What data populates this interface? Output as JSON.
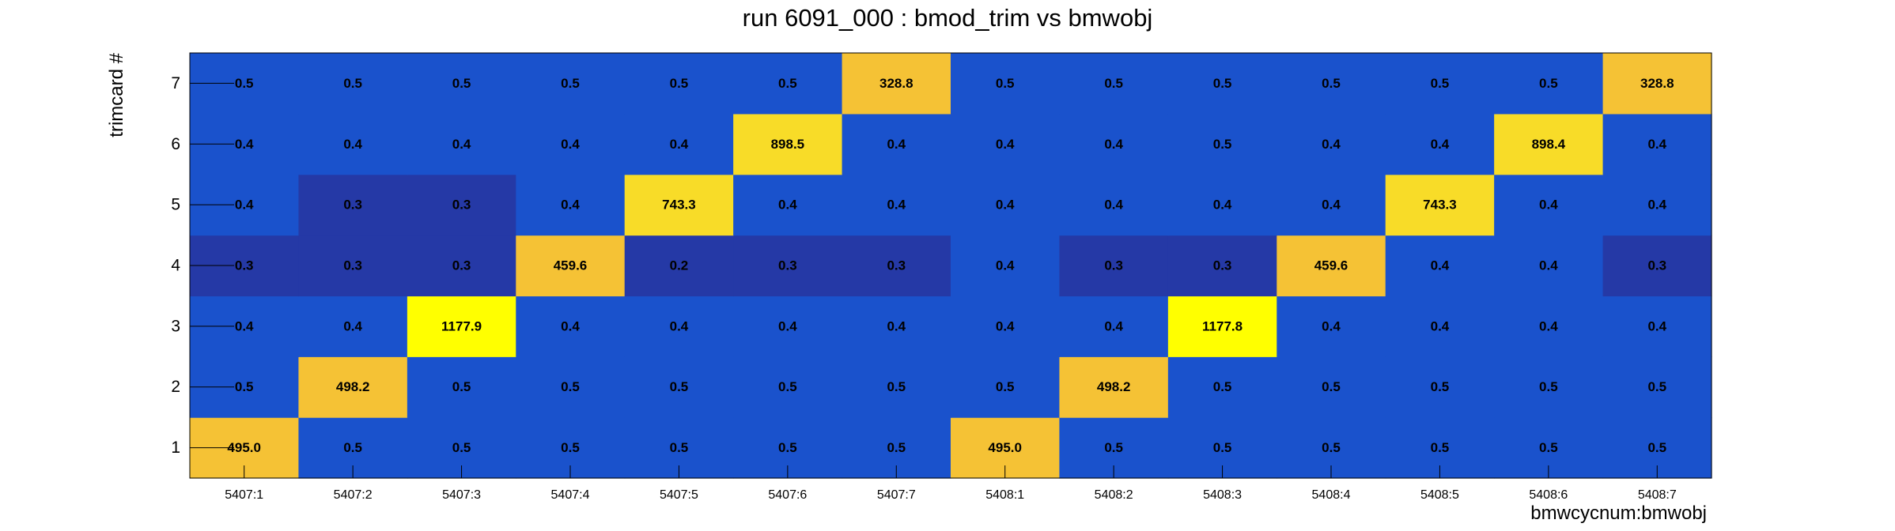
{
  "chart_data": {
    "type": "heatmap",
    "title": "run 6091_000 : bmod_trim vs bmwobj",
    "xlabel": "bmwcycnum:bmwobj",
    "ylabel": "trimcard #",
    "x_categories": [
      "5407:1",
      "5407:2",
      "5407:3",
      "5407:4",
      "5407:5",
      "5407:6",
      "5407:7",
      "5408:1",
      "5408:2",
      "5408:3",
      "5408:4",
      "5408:5",
      "5408:6",
      "5408:7"
    ],
    "y_categories": [
      "1",
      "2",
      "3",
      "4",
      "5",
      "6",
      "7"
    ],
    "values": [
      [
        "495.0",
        "0.5",
        "0.5",
        "0.5",
        "0.5",
        "0.5",
        "0.5",
        "495.0",
        "0.5",
        "0.5",
        "0.5",
        "0.5",
        "0.5",
        "0.5"
      ],
      [
        "0.5",
        "498.2",
        "0.5",
        "0.5",
        "0.5",
        "0.5",
        "0.5",
        "0.5",
        "498.2",
        "0.5",
        "0.5",
        "0.5",
        "0.5",
        "0.5"
      ],
      [
        "0.4",
        "0.4",
        "1177.9",
        "0.4",
        "0.4",
        "0.4",
        "0.4",
        "0.4",
        "0.4",
        "1177.8",
        "0.4",
        "0.4",
        "0.4",
        "0.4"
      ],
      [
        "0.3",
        "0.3",
        "0.3",
        "459.6",
        "0.2",
        "0.3",
        "0.3",
        "0.4",
        "0.3",
        "0.3",
        "459.6",
        "0.4",
        "0.4",
        "0.3"
      ],
      [
        "0.4",
        "0.3",
        "0.3",
        "0.4",
        "743.3",
        "0.4",
        "0.4",
        "0.4",
        "0.4",
        "0.4",
        "0.4",
        "743.3",
        "0.4",
        "0.4"
      ],
      [
        "0.4",
        "0.4",
        "0.4",
        "0.4",
        "0.4",
        "898.5",
        "0.4",
        "0.4",
        "0.4",
        "0.5",
        "0.4",
        "0.4",
        "898.4",
        "0.4"
      ],
      [
        "0.5",
        "0.5",
        "0.5",
        "0.5",
        "0.5",
        "0.5",
        "328.8",
        "0.5",
        "0.5",
        "0.5",
        "0.5",
        "0.5",
        "0.5",
        "328.8"
      ]
    ],
    "colors": {
      "level_low": "#2539a6",
      "level_mid": "#1a52cc",
      "level_high_a": "#f5c235",
      "level_high_b": "#f8dc28",
      "level_high_c": "#ffff00",
      "text": "#000000"
    }
  }
}
